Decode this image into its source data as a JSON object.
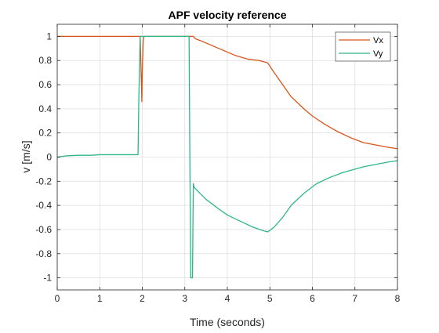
{
  "chart_data": {
    "type": "line",
    "title": "APF velocity reference",
    "xlabel": "Time (seconds)",
    "ylabel": "v [m/s]",
    "xlim": [
      0,
      8
    ],
    "ylim": [
      -1.1,
      1.1
    ],
    "xticks": [
      0,
      1,
      2,
      3,
      4,
      5,
      6,
      7,
      8
    ],
    "xtick_labels": [
      "0",
      "1",
      "2",
      "3",
      "4",
      "5",
      "6",
      "7",
      "8"
    ],
    "yticks": [
      1,
      0.8,
      0.6,
      0.4,
      0.2,
      0,
      -0.2,
      -0.4,
      -0.6,
      -0.8,
      -1
    ],
    "ytick_labels": [
      "1",
      "0.8",
      "0.6",
      "0.4",
      "0.2",
      "0",
      "-0.2",
      "-0.4",
      "-0.6",
      "-0.8",
      "-1"
    ],
    "grid": true,
    "legend_position": "top-right",
    "series": [
      {
        "name": "Vx",
        "color": "#d95319",
        "x": [
          0,
          1.95,
          1.97,
          1.99,
          2.0,
          2.02,
          2.04,
          3.2,
          3.25,
          3.4,
          3.6,
          3.8,
          4.0,
          4.2,
          4.5,
          4.75,
          4.95,
          5.1,
          5.3,
          5.5,
          5.8,
          6.0,
          6.3,
          6.6,
          6.9,
          7.2,
          7.5,
          7.8,
          8.0
        ],
        "y": [
          1,
          1,
          0.75,
          0.46,
          0.7,
          0.95,
          1,
          1,
          0.98,
          0.96,
          0.93,
          0.9,
          0.87,
          0.84,
          0.81,
          0.8,
          0.78,
          0.7,
          0.6,
          0.5,
          0.4,
          0.34,
          0.27,
          0.21,
          0.16,
          0.12,
          0.1,
          0.08,
          0.07
        ]
      },
      {
        "name": "Vy",
        "color": "#2db58a",
        "x": [
          0,
          0.2,
          0.5,
          0.8,
          1.0,
          1.3,
          1.6,
          1.9,
          1.92,
          1.95,
          3.1,
          3.12,
          3.14,
          3.16,
          3.18,
          3.2,
          3.22,
          3.3,
          3.5,
          3.8,
          4.0,
          4.3,
          4.6,
          4.85,
          4.95,
          5.1,
          5.3,
          5.5,
          5.8,
          6.1,
          6.4,
          6.7,
          7.0,
          7.2,
          7.5,
          7.8,
          8.0
        ],
        "y": [
          0,
          0.01,
          0.015,
          0.015,
          0.02,
          0.02,
          0.02,
          0.02,
          0.5,
          1,
          1,
          -0.08,
          -1,
          -1,
          -1,
          -0.22,
          -0.25,
          -0.28,
          -0.35,
          -0.43,
          -0.48,
          -0.53,
          -0.58,
          -0.61,
          -0.62,
          -0.58,
          -0.5,
          -0.4,
          -0.3,
          -0.22,
          -0.17,
          -0.13,
          -0.1,
          -0.08,
          -0.06,
          -0.04,
          -0.03
        ]
      }
    ]
  }
}
